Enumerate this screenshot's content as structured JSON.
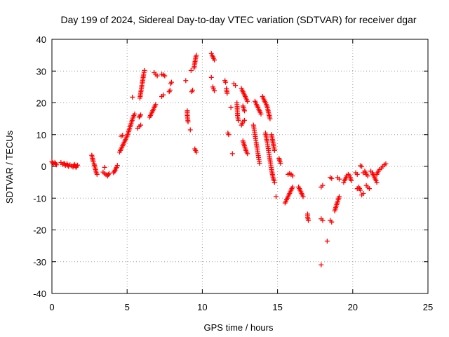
{
  "chart_data": {
    "type": "scatter",
    "title": "Day 199 of 2024, Sidereal Day-to-day VTEC variation (SDTVAR) for receiver dgar",
    "xlabel": "GPS time / hours",
    "ylabel": "SDTVAR / TECUs",
    "xlim": [
      0,
      25
    ],
    "ylim": [
      -40,
      40
    ],
    "xticks": [
      0,
      5,
      10,
      15,
      20,
      25
    ],
    "yticks": [
      -40,
      -30,
      -20,
      -10,
      0,
      10,
      20,
      30,
      40
    ],
    "grid": true,
    "marker": "+",
    "color": "#ff0000",
    "segments": [
      [
        [
          0.0,
          1.5
        ],
        [
          0.1,
          0.8
        ],
        [
          0.2,
          1.2
        ],
        [
          0.3,
          0.5
        ]
      ],
      [
        [
          0.6,
          1.2
        ],
        [
          0.7,
          0.6
        ],
        [
          0.8,
          1.0
        ],
        [
          0.9,
          0.3
        ],
        [
          1.0,
          0.8
        ],
        [
          1.1,
          0.0
        ],
        [
          1.2,
          0.5
        ],
        [
          1.4,
          -0.2
        ],
        [
          1.5,
          0.6
        ],
        [
          1.6,
          -0.3
        ],
        [
          1.7,
          0.4
        ]
      ],
      [
        [
          2.65,
          3.5
        ],
        [
          2.7,
          2.5
        ],
        [
          2.75,
          1.5
        ],
        [
          2.8,
          0.8
        ],
        [
          2.85,
          0.0
        ],
        [
          2.9,
          -1.0
        ],
        [
          2.95,
          -2.0
        ],
        [
          3.0,
          -2.5
        ]
      ],
      [
        [
          3.4,
          -1.8
        ],
        [
          3.5,
          -2.3
        ],
        [
          3.6,
          -2.6
        ],
        [
          3.7,
          -3.0
        ],
        [
          3.8,
          -2.2
        ]
      ],
      [
        [
          3.5,
          -0.3
        ]
      ],
      [
        [
          4.1,
          -2.0
        ],
        [
          4.2,
          -1.2
        ],
        [
          4.3,
          -0.3
        ],
        [
          4.35,
          0.3
        ]
      ],
      [
        [
          4.5,
          4.5
        ],
        [
          4.6,
          5.5
        ],
        [
          4.7,
          6.5
        ],
        [
          4.8,
          7.5
        ],
        [
          4.9,
          8.5
        ],
        [
          5.0,
          9.5
        ],
        [
          5.1,
          11
        ],
        [
          5.2,
          12.5
        ],
        [
          5.3,
          14
        ],
        [
          5.4,
          15.5
        ],
        [
          5.5,
          16.5
        ]
      ],
      [
        [
          4.6,
          9.5
        ],
        [
          4.7,
          9.8
        ]
      ],
      [
        [
          5.35,
          21.8
        ]
      ],
      [
        [
          5.7,
          12
        ],
        [
          5.8,
          12.5
        ],
        [
          5.9,
          13
        ]
      ],
      [
        [
          5.8,
          15.5
        ],
        [
          5.9,
          16.2
        ]
      ],
      [
        [
          5.85,
          21.5
        ],
        [
          5.9,
          23
        ],
        [
          5.95,
          24.5
        ],
        [
          6.0,
          26
        ],
        [
          6.05,
          27.5
        ],
        [
          6.1,
          29
        ],
        [
          6.15,
          30.2
        ]
      ],
      [
        [
          6.5,
          15.5
        ],
        [
          6.6,
          16.5
        ],
        [
          6.7,
          17.5
        ],
        [
          6.8,
          18.5
        ],
        [
          6.9,
          19.5
        ]
      ],
      [
        [
          6.8,
          29.5
        ],
        [
          6.9,
          29
        ],
        [
          7.0,
          28.5
        ]
      ],
      [
        [
          7.3,
          29
        ],
        [
          7.4,
          28.8
        ],
        [
          7.5,
          28.5
        ]
      ],
      [
        [
          7.3,
          22
        ],
        [
          7.4,
          22.5
        ]
      ],
      [
        [
          7.8,
          23.5
        ],
        [
          7.85,
          24
        ]
      ],
      [
        [
          7.9,
          26
        ],
        [
          7.95,
          26.5
        ]
      ],
      [
        [
          8.9,
          27
        ]
      ],
      [
        [
          9.0,
          17.5
        ],
        [
          9.0,
          16
        ],
        [
          9.05,
          14
        ]
      ],
      [
        [
          9.2,
          11.5
        ]
      ],
      [
        [
          9.25,
          30.2
        ]
      ],
      [
        [
          9.3,
          23.5
        ],
        [
          9.35,
          24
        ]
      ],
      [
        [
          9.45,
          31
        ],
        [
          9.5,
          32.5
        ],
        [
          9.55,
          34
        ],
        [
          9.6,
          35
        ]
      ],
      [
        [
          9.5,
          5.5
        ],
        [
          9.55,
          5
        ],
        [
          9.6,
          4.5
        ]
      ],
      [
        [
          10.6,
          35.5
        ],
        [
          10.7,
          34.5
        ],
        [
          10.8,
          33.5
        ]
      ],
      [
        [
          10.6,
          28
        ]
      ],
      [
        [
          10.7,
          25
        ],
        [
          10.8,
          23.8
        ]
      ],
      [
        [
          11.5,
          27
        ],
        [
          11.55,
          26.5
        ]
      ],
      [
        [
          11.6,
          24.5
        ],
        [
          11.65,
          23
        ]
      ],
      [
        [
          11.7,
          10.5
        ],
        [
          11.75,
          10
        ]
      ],
      [
        [
          11.9,
          18.5
        ]
      ],
      [
        [
          12.0,
          4
        ]
      ],
      [
        [
          12.1,
          26
        ],
        [
          12.2,
          25.5
        ]
      ],
      [
        [
          12.3,
          20
        ],
        [
          12.35,
          15.5
        ],
        [
          12.4,
          14.5
        ]
      ],
      [
        [
          12.6,
          24.5
        ],
        [
          12.7,
          23.5
        ],
        [
          12.8,
          22.5
        ],
        [
          12.9,
          21.5
        ],
        [
          13.0,
          20.5
        ]
      ],
      [
        [
          12.7,
          19
        ],
        [
          12.8,
          17.5
        ]
      ],
      [
        [
          12.6,
          13
        ],
        [
          12.7,
          14
        ],
        [
          12.8,
          14.5
        ]
      ],
      [
        [
          12.7,
          8
        ],
        [
          12.8,
          6.5
        ],
        [
          12.9,
          5
        ],
        [
          13.0,
          4
        ]
      ],
      [
        [
          13.5,
          20.5
        ],
        [
          13.6,
          19.5
        ],
        [
          13.7,
          18.5
        ],
        [
          13.8,
          17.5
        ],
        [
          13.9,
          16.5
        ]
      ],
      [
        [
          13.4,
          13
        ],
        [
          13.5,
          10
        ],
        [
          13.6,
          7
        ],
        [
          13.7,
          4
        ],
        [
          13.8,
          1
        ]
      ],
      [
        [
          14.0,
          22
        ],
        [
          14.1,
          21
        ],
        [
          14.2,
          20
        ],
        [
          14.3,
          19
        ],
        [
          14.4,
          17
        ],
        [
          14.5,
          15
        ]
      ],
      [
        [
          14.2,
          10.5
        ],
        [
          14.3,
          8
        ],
        [
          14.4,
          5
        ],
        [
          14.5,
          2
        ],
        [
          14.6,
          -1
        ],
        [
          14.7,
          -3.5
        ],
        [
          14.8,
          -5
        ]
      ],
      [
        [
          14.6,
          10
        ],
        [
          14.7,
          7.5
        ],
        [
          14.8,
          5
        ]
      ],
      [
        [
          14.9,
          -9.5
        ]
      ],
      [
        [
          15.1,
          2.5
        ],
        [
          15.2,
          1
        ]
      ],
      [
        [
          15.5,
          -11.5
        ],
        [
          15.6,
          -10.5
        ],
        [
          15.7,
          -9.5
        ],
        [
          15.8,
          -8.5
        ],
        [
          15.9,
          -7.5
        ],
        [
          16.0,
          -6.5
        ]
      ],
      [
        [
          15.7,
          -2.5
        ],
        [
          15.8,
          -2.2
        ],
        [
          15.9,
          -2.5
        ],
        [
          16.0,
          -3
        ]
      ],
      [
        [
          16.4,
          -6.5
        ],
        [
          16.5,
          -7.5
        ],
        [
          16.6,
          -8.5
        ],
        [
          16.7,
          -9.5
        ]
      ],
      [
        [
          17.0,
          -15
        ],
        [
          17.0,
          -16
        ],
        [
          17.05,
          -17
        ]
      ],
      [
        [
          17.9,
          -31
        ]
      ],
      [
        [
          17.9,
          -16.5
        ],
        [
          18.0,
          -17
        ]
      ],
      [
        [
          17.9,
          -6.5
        ],
        [
          18.0,
          -6
        ]
      ],
      [
        [
          18.3,
          -23.5
        ]
      ],
      [
        [
          18.5,
          -17
        ],
        [
          18.6,
          -17.5
        ]
      ],
      [
        [
          18.8,
          -14
        ],
        [
          18.9,
          -12.5
        ],
        [
          19.0,
          -11
        ],
        [
          19.1,
          -9.5
        ]
      ],
      [
        [
          18.5,
          -3.5
        ],
        [
          18.6,
          -3.8
        ]
      ],
      [
        [
          19.0,
          -3.5
        ],
        [
          19.1,
          -4
        ]
      ],
      [
        [
          19.4,
          -5
        ],
        [
          19.5,
          -4
        ],
        [
          19.6,
          -3
        ],
        [
          19.7,
          -2.5
        ]
      ],
      [
        [
          19.8,
          -3
        ],
        [
          19.9,
          -4.5
        ]
      ],
      [
        [
          20.2,
          -2
        ],
        [
          20.3,
          -2.5
        ]
      ],
      [
        [
          20.3,
          -7
        ],
        [
          20.4,
          -6.5
        ],
        [
          20.5,
          -7.5
        ]
      ],
      [
        [
          20.6,
          -9
        ],
        [
          20.7,
          -8.5
        ]
      ],
      [
        [
          20.7,
          -2
        ],
        [
          20.8,
          -1.5
        ],
        [
          20.9,
          -2.5
        ],
        [
          21.0,
          -3
        ]
      ],
      [
        [
          20.9,
          -6
        ],
        [
          21.0,
          -6.5
        ],
        [
          21.1,
          -7
        ]
      ],
      [
        [
          21.2,
          -1.5
        ],
        [
          21.3,
          -2
        ],
        [
          21.4,
          -3
        ],
        [
          21.5,
          -4
        ],
        [
          21.6,
          -5
        ]
      ],
      [
        [
          21.6,
          -2.5
        ],
        [
          21.7,
          -1.5
        ],
        [
          21.8,
          -1
        ],
        [
          21.9,
          -0.5
        ],
        [
          22.0,
          0
        ],
        [
          22.1,
          0.5
        ],
        [
          22.2,
          0.8
        ]
      ],
      [
        [
          20.5,
          0.2
        ],
        [
          20.6,
          0
        ]
      ]
    ]
  }
}
